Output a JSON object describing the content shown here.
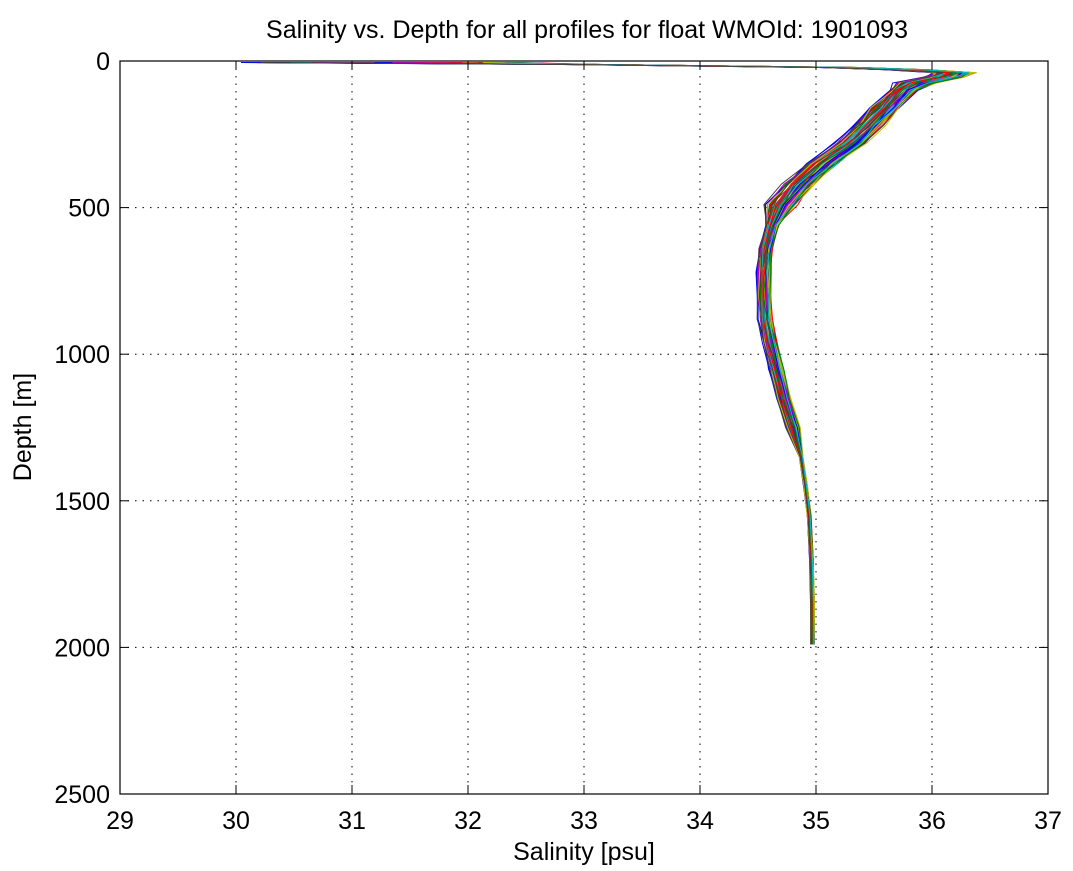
{
  "chart_data": {
    "type": "line",
    "title": "Salinity vs. Depth for all profiles for float WMOId: 1901093",
    "xlabel": "Salinity [psu]",
    "ylabel": "Depth [m]",
    "xlim": [
      29,
      37
    ],
    "ylim": [
      0,
      2500
    ],
    "y_reversed": true,
    "grid": true,
    "grid_style": "dotted",
    "legend": "none",
    "x_ticks": [
      29,
      30,
      31,
      32,
      33,
      34,
      35,
      36,
      37
    ],
    "x_tick_labels": [
      "29",
      "30",
      "31",
      "32",
      "33",
      "34",
      "35",
      "36",
      "37"
    ],
    "y_ticks": [
      0,
      500,
      1000,
      1500,
      2000,
      2500
    ],
    "y_tick_labels": [
      "0",
      "500",
      "1000",
      "1500",
      "2000",
      "2500"
    ],
    "series_colors": [
      "#0000ff",
      "#008000",
      "#ff0000",
      "#00bfbf",
      "#bf00bf",
      "#bfbf00",
      "#404040"
    ],
    "series_count": 70,
    "base_profile": [
      [
        30.0,
        5
      ],
      [
        33.0,
        12
      ],
      [
        35.2,
        22
      ],
      [
        35.8,
        30
      ],
      [
        36.2,
        40
      ],
      [
        36.1,
        55
      ],
      [
        35.85,
        75
      ],
      [
        35.75,
        100
      ],
      [
        35.6,
        160
      ],
      [
        35.45,
        220
      ],
      [
        35.3,
        280
      ],
      [
        35.05,
        350
      ],
      [
        34.85,
        420
      ],
      [
        34.7,
        490
      ],
      [
        34.62,
        560
      ],
      [
        34.57,
        640
      ],
      [
        34.55,
        720
      ],
      [
        34.55,
        800
      ],
      [
        34.56,
        880
      ],
      [
        34.6,
        960
      ],
      [
        34.66,
        1050
      ],
      [
        34.72,
        1150
      ],
      [
        34.8,
        1250
      ],
      [
        34.87,
        1350
      ],
      [
        34.91,
        1450
      ],
      [
        34.94,
        1550
      ],
      [
        34.96,
        1700
      ],
      [
        34.97,
        1850
      ],
      [
        34.97,
        1990
      ]
    ]
  }
}
